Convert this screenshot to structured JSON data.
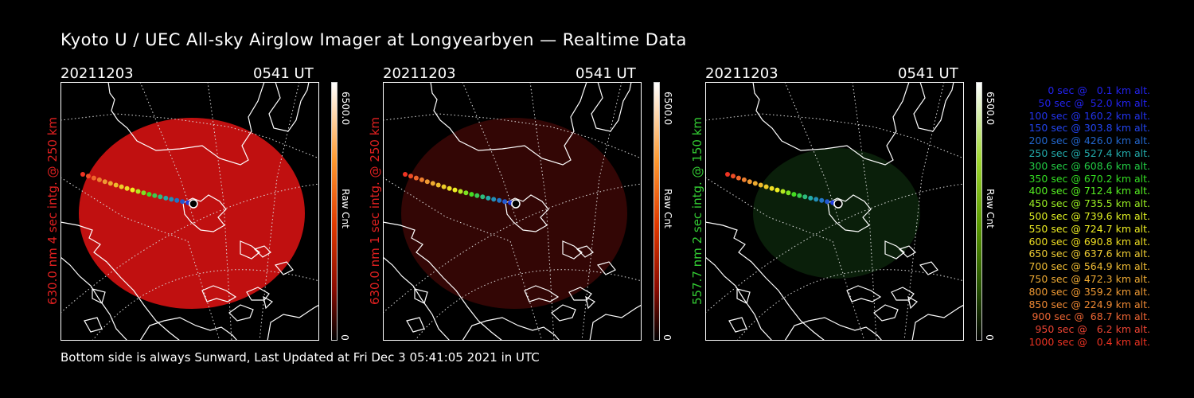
{
  "title": "Kyoto U / UEC All-sky Airglow Imager at Longyearbyen — Realtime Data",
  "footer": "Bottom side is always Sunward, Last Updated at Fri Dec  3 05:41:05 2021 in UTC",
  "panels": [
    {
      "date": "20211203",
      "time": "0541 UT",
      "ylabel": "630.0 nm 4 sec intg. @ 250 km",
      "label_color": "#e02020",
      "scale_max": "6500.0",
      "scale_min": "0",
      "scale_unit": "Raw Cnt",
      "colormap": "red",
      "image_color": "#c01010",
      "image_brightness": 0.78
    },
    {
      "date": "20211203",
      "time": "0541 UT",
      "ylabel": "630.0 nm 1 sec intg. @ 250 km",
      "label_color": "#e02020",
      "scale_max": "6500.0",
      "scale_min": "0",
      "scale_unit": "Raw Cnt",
      "colormap": "red",
      "image_color": "#5a0a08",
      "image_brightness": 0.35
    },
    {
      "date": "20211203",
      "time": "0541 UT",
      "ylabel": "557.7 nm 2 sec intg. @ 150 km",
      "label_color": "#33cc33",
      "scale_max": "6500.0",
      "scale_min": "0",
      "scale_unit": "Raw Cnt",
      "colormap": "green",
      "image_color": "#143c14",
      "image_brightness": 0.3
    }
  ],
  "trajectory": {
    "legend": [
      {
        "text": "0 sec @   0.1 km alt.",
        "color": "#2222ee"
      },
      {
        "text": "50 sec @  52.0 km alt.",
        "color": "#2222ee"
      },
      {
        "text": "100 sec @ 160.2 km alt.",
        "color": "#2233ee"
      },
      {
        "text": "150 sec @ 303.8 km alt.",
        "color": "#2244ee"
      },
      {
        "text": "200 sec @ 426.0 km alt.",
        "color": "#2266cc"
      },
      {
        "text": "250 sec @ 527.4 km alt.",
        "color": "#22aaaa"
      },
      {
        "text": "300 sec @ 608.6 km alt.",
        "color": "#22cc44"
      },
      {
        "text": "350 sec @ 670.2 km alt.",
        "color": "#33dd22"
      },
      {
        "text": "400 sec @ 712.4 km alt.",
        "color": "#55ee22"
      },
      {
        "text": "450 sec @ 735.5 km alt.",
        "color": "#99ee22"
      },
      {
        "text": "500 sec @ 739.6 km alt.",
        "color": "#ddee22"
      },
      {
        "text": "550 sec @ 724.7 km alt.",
        "color": "#eeee22"
      },
      {
        "text": "600 sec @ 690.8 km alt.",
        "color": "#eedd22"
      },
      {
        "text": "650 sec @ 637.6 km alt.",
        "color": "#eecc33"
      },
      {
        "text": "700 sec @ 564.9 km alt.",
        "color": "#eebb33"
      },
      {
        "text": "750 sec @ 472.3 km alt.",
        "color": "#eeaa33"
      },
      {
        "text": "800 sec @ 359.2 km alt.",
        "color": "#ee9933"
      },
      {
        "text": "850 sec @ 224.9 km alt.",
        "color": "#ee8833"
      },
      {
        "text": "900 sec @  68.7 km alt.",
        "color": "#ee6633"
      },
      {
        "text": "950 sec @   6.2 km alt.",
        "color": "#ee4433"
      },
      {
        "text": "1000 sec @   0.4 km alt.",
        "color": "#ee3322"
      }
    ]
  }
}
